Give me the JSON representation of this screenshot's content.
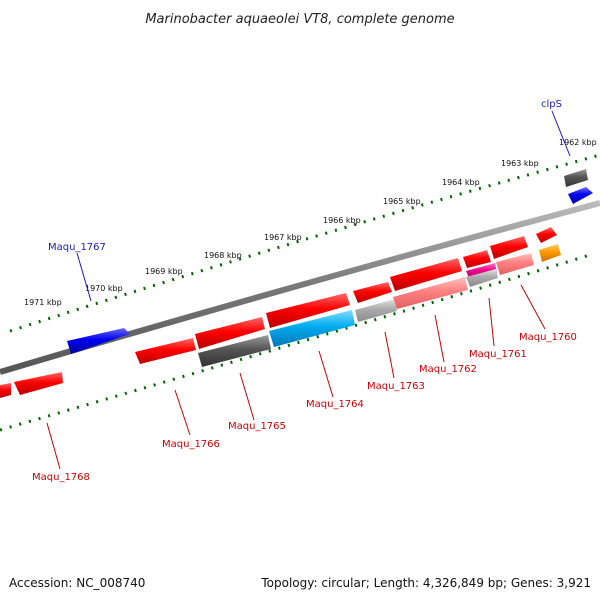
{
  "title": "Marinobacter aquaeolei VT8, complete genome",
  "footer": {
    "accession": "Accession: NC_008740",
    "stats": "Topology: circular; Length: 4,326,849 bp; Genes: 3,921"
  },
  "ticks": [
    "1971 kbp",
    "1970 kbp",
    "1969 kbp",
    "1968 kbp",
    "1967 kbp",
    "1966 kbp",
    "1965 kbp",
    "1964 kbp",
    "1963 kbp",
    "1962 kbp"
  ],
  "gene_labels": {
    "maqu_1768": "Maqu_1768",
    "maqu_1767": "Maqu_1767",
    "maqu_1766": "Maqu_1766",
    "maqu_1765": "Maqu_1765",
    "maqu_1764": "Maqu_1764",
    "maqu_1763": "Maqu_1763",
    "maqu_1762": "Maqu_1762",
    "maqu_1761": "Maqu_1761",
    "maqu_1760": "Maqu_1760",
    "clps": "clpS"
  },
  "colors": {
    "red_gene": "#ff0000",
    "pink_gene": "#ff8080",
    "blue_gene": "#0000ee",
    "cyan_gene": "#00aaee",
    "dark_gray_gene": "#555555",
    "light_gray_gene": "#aaaaaa",
    "magenta_gene": "#ee0088",
    "orange_gene": "#ff9900",
    "tick_green": "#006600",
    "backbone_gray": "#777777",
    "label_red": "#cc0000",
    "label_blue": "#1a1acc"
  }
}
